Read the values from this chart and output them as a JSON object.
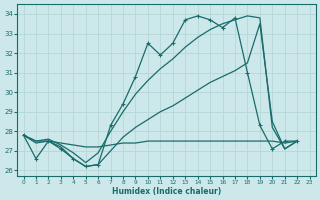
{
  "xlabel": "Humidex (Indice chaleur)",
  "ylabel": "",
  "xlim": [
    -0.5,
    23.5
  ],
  "ylim": [
    25.7,
    34.5
  ],
  "yticks": [
    26,
    27,
    28,
    29,
    30,
    31,
    32,
    33,
    34
  ],
  "xticks": [
    0,
    1,
    2,
    3,
    4,
    5,
    6,
    7,
    8,
    9,
    10,
    11,
    12,
    13,
    14,
    15,
    16,
    17,
    18,
    19,
    20,
    21,
    22,
    23
  ],
  "bg_color": "#cce8ea",
  "line_color": "#1a6b6b",
  "grid_color": "#b8d8da",
  "series": [
    {
      "x": [
        0,
        1,
        2,
        3,
        4,
        5,
        6,
        7,
        8,
        9,
        10,
        11,
        12,
        13,
        14,
        15,
        16,
        17,
        18,
        19,
        20,
        21,
        22
      ],
      "y": [
        27.8,
        26.6,
        27.5,
        27.1,
        26.6,
        26.2,
        26.3,
        28.3,
        29.4,
        30.8,
        32.5,
        31.9,
        32.5,
        33.7,
        33.9,
        33.7,
        33.3,
        33.8,
        31.0,
        28.3,
        27.1,
        27.5,
        27.5
      ],
      "has_markers": true
    },
    {
      "x": [
        0,
        1,
        2,
        3,
        4,
        5,
        6,
        7,
        8,
        9,
        10,
        11,
        12,
        13,
        14,
        15,
        16,
        17,
        18,
        19,
        20,
        21,
        22
      ],
      "y": [
        27.8,
        27.5,
        27.5,
        27.4,
        27.3,
        27.2,
        27.2,
        27.3,
        27.4,
        27.4,
        27.5,
        27.5,
        27.5,
        27.5,
        27.5,
        27.5,
        27.5,
        27.5,
        27.5,
        27.5,
        27.5,
        27.4,
        27.5
      ],
      "has_markers": false
    },
    {
      "x": [
        0,
        1,
        2,
        3,
        4,
        5,
        6,
        7,
        8,
        9,
        10,
        11,
        12,
        13,
        14,
        15,
        16,
        17,
        18,
        19,
        20,
        21,
        22
      ],
      "y": [
        27.8,
        27.4,
        27.5,
        27.2,
        26.6,
        26.2,
        26.3,
        27.0,
        27.7,
        28.2,
        28.6,
        29.0,
        29.3,
        29.7,
        30.1,
        30.5,
        30.8,
        31.1,
        31.5,
        33.5,
        28.5,
        27.1,
        27.5
      ],
      "has_markers": false
    },
    {
      "x": [
        0,
        1,
        2,
        3,
        4,
        5,
        6,
        7,
        8,
        9,
        10,
        11,
        12,
        13,
        14,
        15,
        16,
        17,
        18,
        19,
        20,
        21,
        22
      ],
      "y": [
        27.8,
        27.5,
        27.6,
        27.3,
        26.9,
        26.4,
        26.9,
        28.0,
        29.0,
        29.9,
        30.6,
        31.2,
        31.7,
        32.3,
        32.8,
        33.2,
        33.5,
        33.7,
        33.9,
        33.8,
        28.2,
        27.1,
        27.5
      ],
      "has_markers": false
    }
  ]
}
